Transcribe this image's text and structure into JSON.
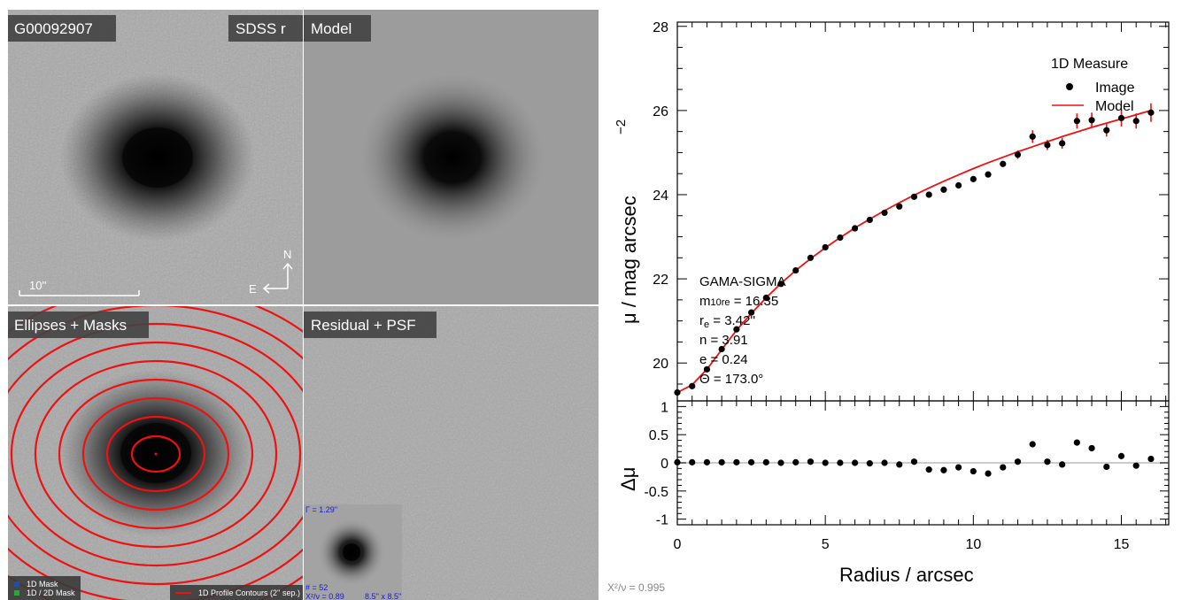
{
  "panels": {
    "top_left": {
      "label": "G00092907",
      "band": "SDSS r",
      "scale_label": "10''",
      "compass_n": "N",
      "compass_e": "E"
    },
    "top_right": {
      "label": "Model"
    },
    "bottom_left": {
      "label": "Ellipses + Masks",
      "legend_1d_mask": "1D Mask",
      "legend_2d_mask": "1D / 2D Mask",
      "contour_legend": "1D Profile Contours (2'' sep.)"
    },
    "bottom_right": {
      "label": "Residual + PSF",
      "psf_gamma": "Γ = 1.29''",
      "psf_n": "# = 52",
      "psf_chi": "X²/ν = 0.89",
      "psf_size": "8.5'' x 8.5''"
    }
  },
  "footer": {
    "chi2": "X²/ν = 0.995"
  },
  "colors": {
    "model": "#ee1111",
    "points": "#000000",
    "mask_1d": "#1f4fa0",
    "mask_2d": "#22aa33"
  },
  "chart_data": [
    {
      "type": "scatter",
      "title": "",
      "xlabel": "",
      "ylabel": "μ / mag arcsec",
      "ylabel_exp": "−2",
      "xlim": [
        0,
        16.6
      ],
      "ylim": [
        28.1,
        19.1
      ],
      "y_inverted": true,
      "y_ticks": [
        20,
        22,
        24,
        26,
        28
      ],
      "legend": {
        "title": "1D Measure",
        "placement": "top-right",
        "entries": [
          {
            "label": "Image",
            "marker": "point"
          },
          {
            "label": "Model",
            "marker": "line"
          }
        ]
      },
      "annotation": {
        "survey": "GAMA-SIGMA",
        "m_label": "m",
        "m_sub": "10re",
        "m_value": " = 16.35",
        "re_label": "r",
        "re_sub": "e",
        "re_value": " = 3.42''",
        "n": "n = 3.91",
        "e": "e = 0.24",
        "theta": "Θ = 173.0°"
      },
      "series": [
        {
          "name": "Image",
          "x": [
            0,
            0.5,
            1,
            1.5,
            2,
            2.5,
            3,
            3.5,
            4,
            4.5,
            5,
            5.5,
            6,
            6.5,
            7,
            7.5,
            8,
            8.5,
            9,
            9.5,
            10,
            10.5,
            11,
            11.5,
            12,
            12.5,
            13,
            13.5,
            14,
            14.5,
            15,
            15.5,
            16
          ],
          "y": [
            19.3,
            19.45,
            19.85,
            20.33,
            20.8,
            21.2,
            21.55,
            21.88,
            22.2,
            22.5,
            22.75,
            22.98,
            23.2,
            23.4,
            23.57,
            23.72,
            23.95,
            24.0,
            24.12,
            24.22,
            24.37,
            24.48,
            24.73,
            24.95,
            25.38,
            25.18,
            25.22,
            25.75,
            25.77,
            25.53,
            25.82,
            25.75,
            25.95
          ],
          "err": [
            0,
            0,
            0,
            0,
            0,
            0,
            0,
            0,
            0,
            0,
            0,
            0,
            0,
            0,
            0,
            0,
            0,
            0,
            0,
            0,
            0,
            0,
            0.05,
            0.1,
            0.15,
            0.12,
            0.13,
            0.18,
            0.18,
            0.15,
            0.2,
            0.18,
            0.22
          ]
        },
        {
          "name": "Model",
          "x": [
            0,
            0.5,
            1,
            1.5,
            2,
            2.5,
            3,
            3.5,
            4,
            4.5,
            5,
            5.5,
            6,
            6.5,
            7,
            7.5,
            8,
            8.5,
            9,
            9.5,
            10,
            10.5,
            11,
            11.5,
            12,
            12.5,
            13,
            13.5,
            14,
            14.5,
            15,
            15.5,
            16
          ],
          "y": [
            19.3,
            19.48,
            19.85,
            20.32,
            20.78,
            21.18,
            21.55,
            21.89,
            22.2,
            22.48,
            22.74,
            22.98,
            23.21,
            23.42,
            23.62,
            23.81,
            23.99,
            24.16,
            24.32,
            24.47,
            24.62,
            24.76,
            24.89,
            25.02,
            25.14,
            25.26,
            25.38,
            25.49,
            25.6,
            25.7,
            25.8,
            25.9,
            26.0
          ]
        }
      ]
    },
    {
      "type": "scatter",
      "title": "",
      "xlabel": "Radius / arcsec",
      "ylabel": "Δμ",
      "xlim": [
        0,
        16.6
      ],
      "ylim": [
        -1.1,
        1.1
      ],
      "x_ticks": [
        0,
        5,
        10,
        15
      ],
      "y_ticks": [
        1,
        0.5,
        0,
        -0.5,
        -1
      ],
      "y_tick_labels": [
        "1",
        "0.5",
        "0",
        "-0.5",
        "-1"
      ],
      "reference_line": 0,
      "series": [
        {
          "name": "Residual",
          "x": [
            0,
            0.5,
            1,
            1.5,
            2,
            2.5,
            3,
            3.5,
            4,
            4.5,
            5,
            5.5,
            6,
            6.5,
            7,
            7.5,
            8,
            8.5,
            9,
            9.5,
            10,
            10.5,
            11,
            11.5,
            12,
            12.5,
            13,
            13.5,
            14,
            14.5,
            15,
            15.5,
            16
          ],
          "y": [
            0.01,
            0.01,
            0.01,
            0.01,
            0.01,
            0.01,
            0.01,
            0.0,
            0.01,
            0.02,
            0.0,
            0.0,
            0.0,
            -0.01,
            0.0,
            -0.03,
            0.02,
            -0.12,
            -0.13,
            -0.08,
            -0.15,
            -0.19,
            -0.08,
            0.02,
            0.33,
            0.02,
            -0.03,
            0.36,
            0.26,
            -0.07,
            0.12,
            -0.05,
            0.07
          ]
        }
      ]
    }
  ]
}
